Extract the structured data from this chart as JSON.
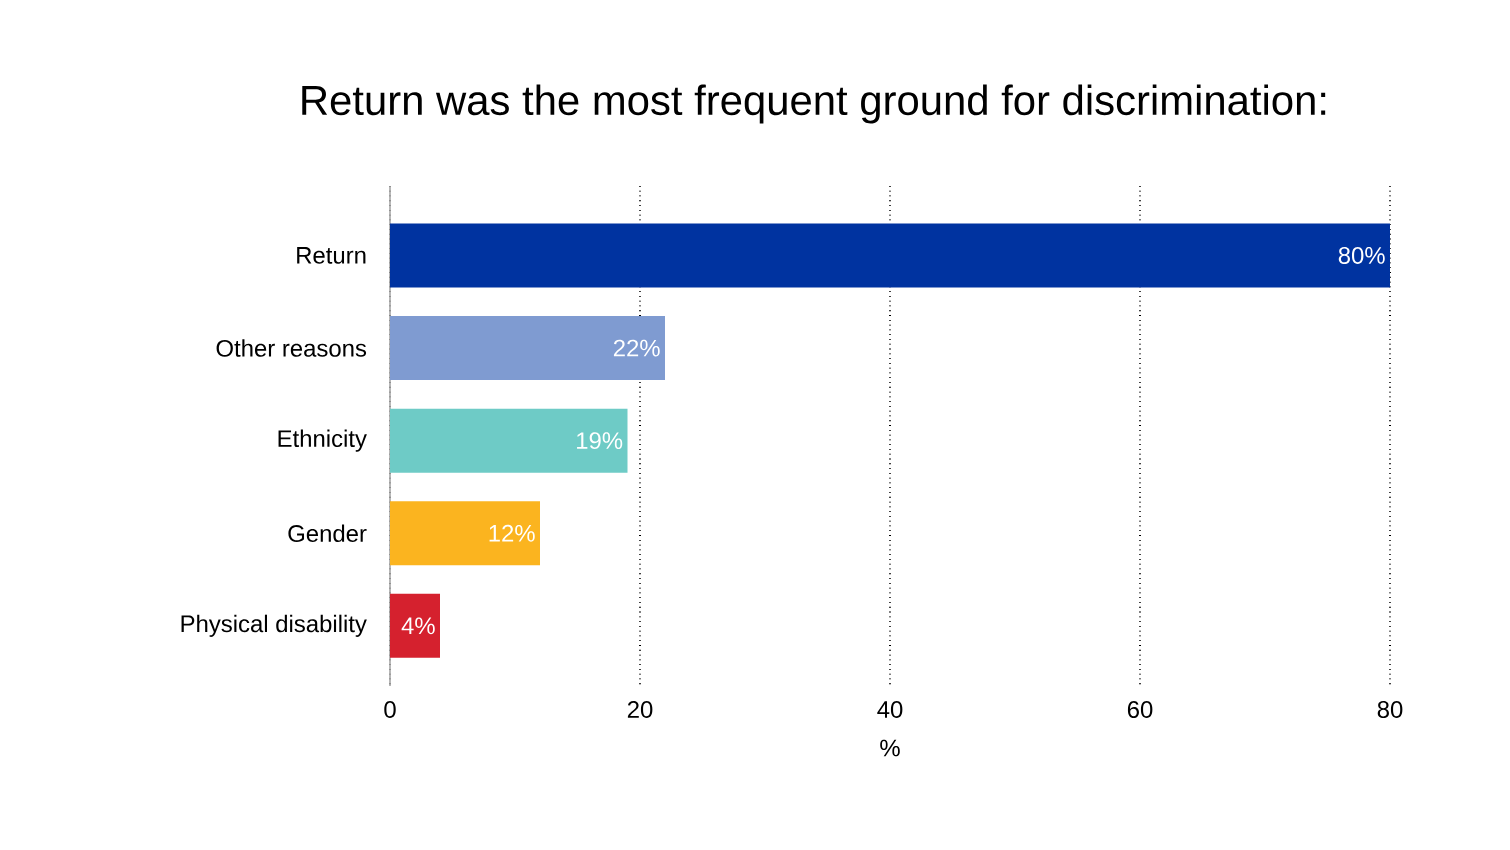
{
  "chart_data": {
    "type": "bar",
    "orientation": "horizontal",
    "title": "Return was the most frequent ground for discrimination:",
    "categories": [
      "Return",
      "Other reasons",
      "Ethnicity",
      "Gender",
      "Physical disability"
    ],
    "values": [
      80,
      22,
      19,
      12,
      4
    ],
    "colors": [
      "#0033a0",
      "#7f9bd1",
      "#6ecbc6",
      "#fbb41f",
      "#d5212e"
    ],
    "value_labels": [
      "80%",
      "22%",
      "19%",
      "12%",
      "4%"
    ],
    "xlabel": "%",
    "xlim": [
      0,
      80
    ],
    "xticks": [
      0,
      20,
      40,
      60,
      80
    ],
    "grid": "x"
  }
}
